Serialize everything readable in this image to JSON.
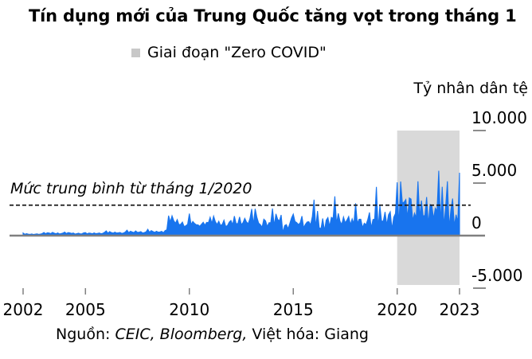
{
  "title": "Tín dụng mới của Trung Quốc tăng vọt trong tháng 1",
  "legend": {
    "label": "Giai đoạn \"Zero COVID\"",
    "marker_color": "#c8c8c8"
  },
  "source": {
    "prefix": "Nguồn: ",
    "italic": "CEIC, Bloomberg,",
    "suffix": " Việt hóa: Giang"
  },
  "chart_data": {
    "type": "area",
    "title": "Tín dụng mới của Trung Quốc tăng vọt trong tháng 1",
    "ylabel": "Tỷ nhân dân tệ",
    "xlabel": "",
    "x_start": "2002-01",
    "frequency": "monthly",
    "ylim": [
      -5000,
      10000
    ],
    "grid": false,
    "legend_position": "top",
    "colors": {
      "area": "#1874ee",
      "band": "#d9d9d9",
      "axis": "#808080",
      "tick": "#8c8c8c",
      "average_line": "#1a1a1a"
    },
    "average_line": {
      "value": 2900,
      "label": "Mức trung bình từ tháng 1/2020",
      "style": "dashed"
    },
    "shaded_region": {
      "label": "Giai đoạn \"Zero COVID\"",
      "from_year": 2020,
      "from_month": 1,
      "to_year": 2023,
      "to_month": 1
    },
    "y_axis": {
      "ticks": [
        {
          "label": "10.000",
          "value": 10000
        },
        {
          "label": "5.000",
          "value": 5000
        },
        {
          "label": "0",
          "value": 0
        },
        {
          "label": "-5.000",
          "value": -5000
        }
      ]
    },
    "x_axis": {
      "ticks": [
        {
          "label": "2002",
          "year": 2002
        },
        {
          "label": "2005",
          "year": 2005
        },
        {
          "label": "2010",
          "year": 2010
        },
        {
          "label": "2015",
          "year": 2015
        },
        {
          "label": "2020",
          "year": 2020
        },
        {
          "label": "2023",
          "year": 2023
        }
      ]
    },
    "values": [
      250,
      130,
      180,
      140,
      120,
      160,
      110,
      140,
      170,
      120,
      150,
      190,
      300,
      180,
      270,
      250,
      190,
      310,
      230,
      180,
      260,
      160,
      200,
      240,
      340,
      200,
      290,
      260,
      210,
      250,
      150,
      190,
      230,
      170,
      180,
      260,
      290,
      170,
      240,
      220,
      180,
      260,
      190,
      210,
      250,
      180,
      220,
      310,
      450,
      230,
      380,
      290,
      240,
      330,
      250,
      270,
      300,
      210,
      250,
      340,
      520,
      280,
      420,
      350,
      290,
      450,
      310,
      330,
      380,
      250,
      290,
      360,
      600,
      320,
      480,
      390,
      310,
      420,
      330,
      350,
      410,
      280,
      480,
      560,
      1900,
      1300,
      1890,
      1420,
      1180,
      1530,
      1040,
      1080,
      1290,
      860,
      940,
      1080,
      2100,
      1050,
      1350,
      1160,
      1040,
      1030,
      890,
      1080,
      1270,
      990,
      1260,
      1230,
      1750,
      1160,
      1860,
      1330,
      1060,
      1370,
      970,
      1070,
      1470,
      860,
      960,
      1280,
      1440,
      1040,
      1860,
      1140,
      1140,
      1780,
      1040,
      1240,
      1650,
      1290,
      1140,
      1630,
      2540,
      1070,
      2550,
      1750,
      1190,
      1040,
      810,
      1570,
      1410,
      860,
      1230,
      1230,
      2580,
      940,
      2070,
      1550,
      1400,
      1970,
      270,
      960,
      1050,
      660,
      1150,
      1690,
      2050,
      1350,
      1240,
      1050,
      1220,
      1860,
      750,
      1080,
      1300,
      1330,
      1020,
      1820,
      3420,
      780,
      2340,
      750,
      660,
      1630,
      480,
      1470,
      1720,
      880,
      1740,
      1630,
      3740,
      1150,
      2120,
      1360,
      1060,
      1780,
      1220,
      1480,
      1820,
      1040,
      1600,
      1140,
      3070,
      1170,
      1560,
      1560,
      760,
      1180,
      1040,
      1520,
      2210,
      730,
      1520,
      1590,
      4640,
      700,
      2860,
      1360,
      1400,
      2260,
      1010,
      1980,
      2270,
      620,
      1750,
      2100,
      5070,
      860,
      5150,
      3090,
      3190,
      3430,
      1690,
      3580,
      3480,
      1420,
      2130,
      1720,
      5170,
      1710,
      3340,
      1850,
      1930,
      3670,
      1060,
      2960,
      2900,
      1590,
      2610,
      2370,
      6170,
      1190,
      4650,
      910,
      2790,
      5170,
      760,
      2430,
      3530,
      910,
      1990,
      1310,
      5980
    ]
  }
}
